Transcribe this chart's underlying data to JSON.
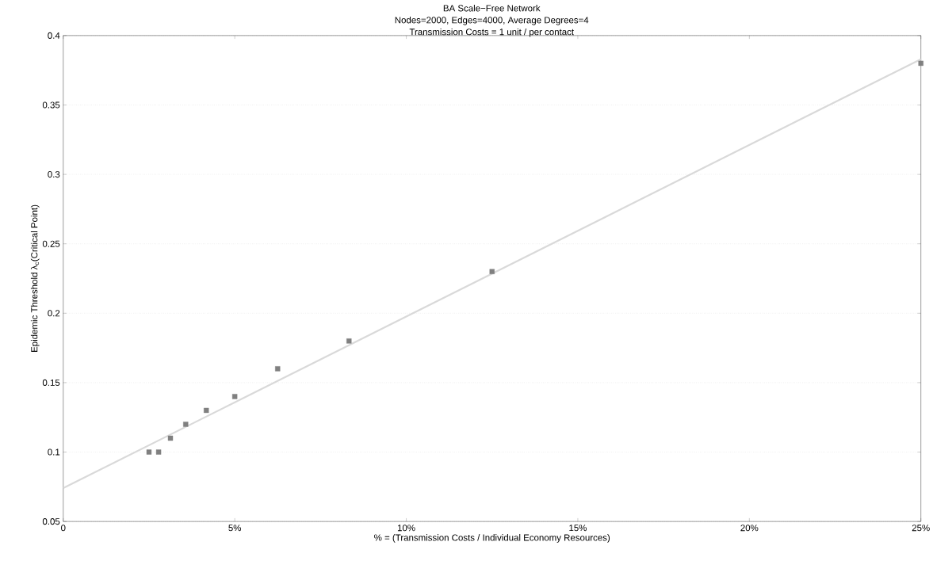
{
  "chart_data": {
    "type": "scatter",
    "title": "BA Scale−Free Network",
    "subtitle": "Nodes=2000, Edges=4000, Average Degrees=4",
    "annotations": [
      "Transmission Costs = 1 unit / per contact"
    ],
    "xlabel": "% = (Transmission Costs / Individual Economy Resources)",
    "ylabel": "Epidemic Threshold λ$_{c}$(Critical Point)",
    "series": [
      {
        "color": "#808080",
        "marker": "square",
        "x": [
          2.5,
          2.78,
          3.125,
          3.57,
          4.17,
          5,
          6.25,
          8.33,
          12.5,
          25
        ],
        "values": [
          0.1,
          0.1,
          0.11,
          0.12,
          0.13,
          0.14,
          0.16,
          0.18,
          0.23,
          0.38
        ]
      },
      {
        "type": "line",
        "color": "#d9d9d9",
        "marker": "none",
        "line_style": "solid",
        "x": [
          0,
          25
        ],
        "values": [
          0.074,
          0.383
        ]
      }
    ],
    "xlim": [
      0,
      25
    ],
    "ylim": [
      0.05,
      0.4
    ],
    "xticks": [
      0,
      {
        "value": 5,
        "label": "5%"
      },
      {
        "value": 10,
        "label": "10%"
      },
      {
        "value": 15,
        "label": "15%"
      },
      {
        "value": 20,
        "label": "20%"
      },
      {
        "value": 25,
        "label": "25%"
      }
    ],
    "yticks": [
      0.05,
      0.1,
      0.15,
      0.2,
      0.25,
      0.3,
      0.35,
      0.4
    ],
    "grid": "y"
  }
}
